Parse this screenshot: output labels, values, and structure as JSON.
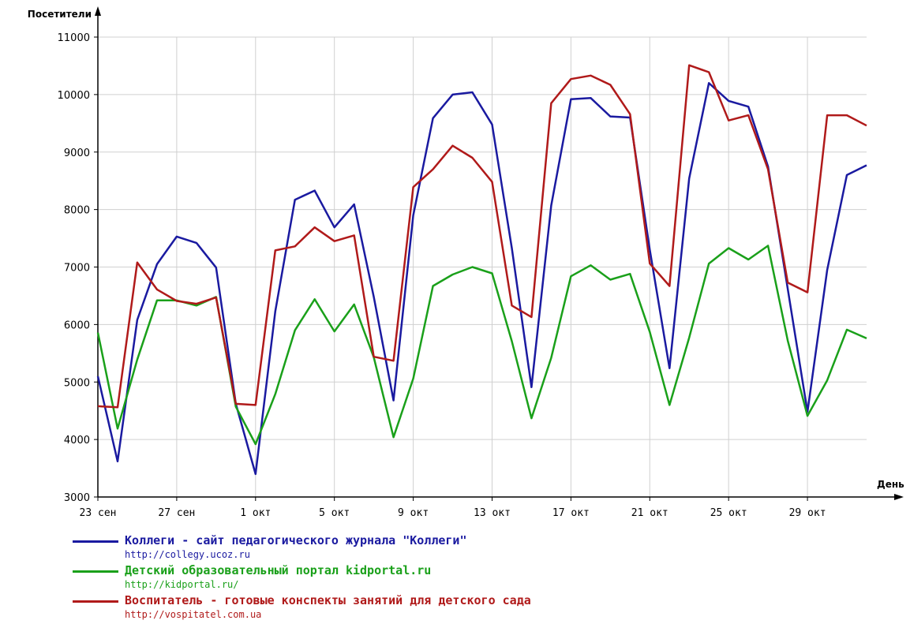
{
  "chart_data": {
    "type": "line",
    "ylabel": "Посетители",
    "xlabel": "День",
    "ylim": [
      3000,
      11000
    ],
    "yticks": [
      3000,
      4000,
      5000,
      6000,
      7000,
      8000,
      9000,
      10000,
      11000
    ],
    "x": [
      "23 сен",
      "24 сен",
      "25 сен",
      "26 сен",
      "27 сен",
      "28 сен",
      "29 сен",
      "30 сен",
      "1 окт",
      "2 окт",
      "3 окт",
      "4 окт",
      "5 окт",
      "6 окт",
      "7 окт",
      "8 окт",
      "9 окт",
      "10 окт",
      "11 окт",
      "12 окт",
      "13 окт",
      "14 окт",
      "15 окт",
      "16 окт",
      "17 окт",
      "18 окт",
      "19 окт",
      "20 окт",
      "21 окт",
      "22 окт",
      "23 окт",
      "24 окт",
      "25 окт",
      "26 окт",
      "27 окт",
      "28 окт",
      "29 окт",
      "30 окт",
      "31 окт",
      "1 ноя"
    ],
    "xtick_labels": [
      "23 сен",
      "27 сен",
      "1 окт",
      "5 окт",
      "9 окт",
      "13 окт",
      "17 окт",
      "21 окт",
      "25 окт",
      "29 окт"
    ],
    "grid": true,
    "legend_position": "bottom",
    "series": [
      {
        "name": "Коллеги - сайт педагогического журнала \"Коллеги\"",
        "url": "http://collegy.ucoz.ru",
        "color": "#1a1aa0",
        "values": [
          5100,
          3620,
          6080,
          7050,
          7530,
          7420,
          6990,
          4620,
          3400,
          6230,
          8170,
          8330,
          7690,
          8090,
          6480,
          4680,
          7900,
          9590,
          10000,
          10040,
          9480,
          7330,
          4910,
          8070,
          9920,
          9940,
          9620,
          9600,
          7300,
          5240,
          8540,
          10200,
          9890,
          9790,
          8750,
          6620,
          4480,
          6950,
          8600,
          8770
        ]
      },
      {
        "name": "Детский образовательный портал kidportal.ru",
        "url": "http://kidportal.ru/",
        "color": "#1aa01a",
        "values": [
          5860,
          4190,
          5390,
          6420,
          6420,
          6330,
          6480,
          4570,
          3920,
          4790,
          5900,
          6440,
          5880,
          6350,
          5430,
          4040,
          5060,
          6670,
          6870,
          7000,
          6890,
          5710,
          4370,
          5420,
          6840,
          7030,
          6780,
          6880,
          5870,
          4600,
          5770,
          7060,
          7330,
          7130,
          7370,
          5720,
          4410,
          5030,
          5910,
          5760
        ]
      },
      {
        "name": "Воспитатель - готовые конспекты занятий для детского сада",
        "url": "http://vospitatel.com.ua",
        "color": "#b01a1a",
        "values": [
          4580,
          4560,
          7080,
          6610,
          6410,
          6360,
          6470,
          4620,
          4600,
          7290,
          7360,
          7690,
          7450,
          7550,
          5440,
          5370,
          8390,
          8700,
          9110,
          8900,
          8480,
          6330,
          6130,
          9850,
          10270,
          10330,
          10170,
          9660,
          7060,
          6670,
          10510,
          10390,
          9550,
          9640,
          8700,
          6730,
          6560,
          9640,
          9640,
          9460
        ]
      }
    ]
  }
}
